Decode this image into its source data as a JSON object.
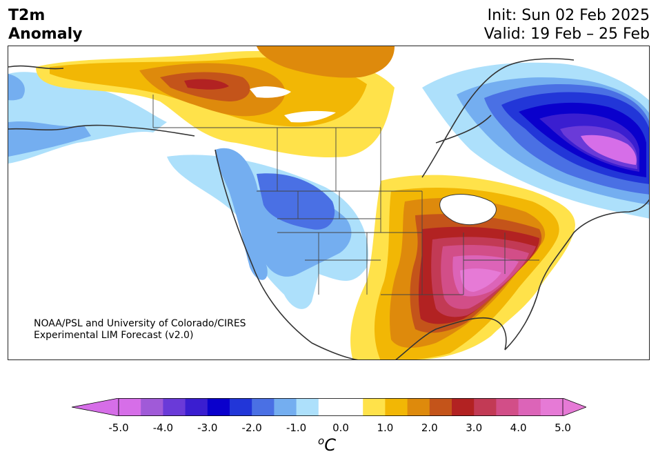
{
  "title": {
    "left_line1": "T2m",
    "left_line2": "Anomaly",
    "right_line1": "Init: Sun 02 Feb 2025",
    "right_line2": "Valid: 19 Feb – 25 Feb"
  },
  "credit": {
    "line1": "NOAA/PSL and University of Colorado/CIRES",
    "line2": "Experimental LIM Forecast (v2.0)"
  },
  "colorbar": {
    "unit_base": "C",
    "unit_sup": "o",
    "ticks": [
      "-5.0",
      "-4.0",
      "-3.0",
      "-2.0",
      "-1.0",
      "0.0",
      "1.0",
      "2.0",
      "3.0",
      "4.0",
      "5.0"
    ],
    "colors": [
      "#d66ee8",
      "#a05ad8",
      "#6a3ad8",
      "#3a1ed0",
      "#0a00cc",
      "#2236d8",
      "#4a70e4",
      "#74aef0",
      "#ade0fb",
      "#ffffff",
      "#ffffff",
      "#ffe24a",
      "#f2b705",
      "#de8a0c",
      "#c4541a",
      "#b22222",
      "#c23a55",
      "#d24e88",
      "#dc64b8",
      "#e67ad6"
    ],
    "low_extend_color": "#d66ee8",
    "high_extend_color": "#e67ad6"
  }
}
